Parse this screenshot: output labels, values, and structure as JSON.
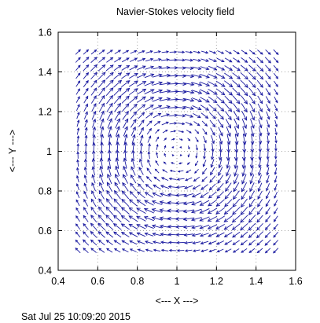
{
  "chart_data": {
    "type": "vector_field",
    "title": "Navier-Stokes velocity field",
    "xlabel": "<--- X --->",
    "ylabel": "<--- Y --->",
    "xlim": [
      0.4,
      1.6
    ],
    "ylim": [
      0.4,
      1.6
    ],
    "xticks": [
      0.4,
      0.6,
      0.8,
      1.0,
      1.2,
      1.4,
      1.6
    ],
    "yticks": [
      0.4,
      0.6,
      0.8,
      1.0,
      1.2,
      1.4,
      1.6
    ],
    "xtick_labels": [
      "0.4",
      "0.6",
      "0.8",
      "1",
      "1.2",
      "1.4",
      "1.6"
    ],
    "ytick_labels": [
      "0.4",
      "0.6",
      "0.8",
      "1",
      "1.2",
      "1.4",
      "1.6"
    ],
    "grid": true,
    "grid_style": "dotted",
    "vector_color": "#1a1aa0",
    "field": {
      "description": "clockwise vortex centered at (1, 1), sampled on a regular grid",
      "x_range": [
        0.5,
        1.5
      ],
      "y_range": [
        0.5,
        1.5
      ],
      "step": 0.04,
      "center": [
        1.0,
        1.0
      ],
      "rotation": "clockwise"
    }
  },
  "footer": {
    "timestamp": "Sat Jul 25 10:09:20 2015"
  }
}
